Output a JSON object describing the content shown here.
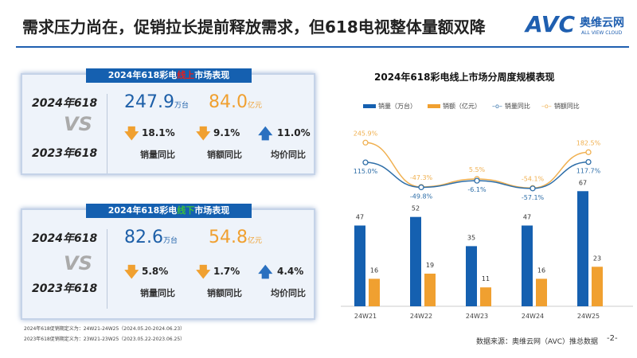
{
  "title": "需求压力尚在，促销拉长提前释放需求，但618电视整体量额双降",
  "logo": {
    "mark": "AVC",
    "cn": "奥维云网",
    "en": "ALL VIEW CLOUD"
  },
  "panels": [
    {
      "title_pre": "2024年618彩电",
      "title_hl": "线上",
      "title_post": "市场表现",
      "hl_color": "#e02020",
      "year_a": "2024年618",
      "vs": "VS",
      "year_b": "2023年618",
      "volume": "247.9",
      "volume_unit": "万台",
      "sales": "84.0",
      "sales_unit": "亿元",
      "vol_yoy": "18.1%",
      "sales_yoy": "9.1%",
      "price_yoy": "11.0%",
      "vol_dir": "down",
      "sales_dir": "down",
      "price_dir": "up",
      "vol_label": "销量同比",
      "sales_label": "销额同比",
      "price_label": "均价同比"
    },
    {
      "title_pre": "2024年618彩电",
      "title_hl": "线下",
      "title_post": "市场表现",
      "hl_color": "#3bbf3b",
      "year_a": "2024年618",
      "vs": "VS",
      "year_b": "2023年618",
      "volume": "82.6",
      "volume_unit": "万台",
      "sales": "54.8",
      "sales_unit": "亿元",
      "vol_yoy": "5.8%",
      "sales_yoy": "1.7%",
      "price_yoy": "4.4%",
      "vol_dir": "down",
      "sales_dir": "down",
      "price_dir": "up",
      "vol_label": "销量同比",
      "sales_label": "销额同比",
      "price_label": "均价同比"
    }
  ],
  "notes": [
    "2024年618促销期定义为：24W21-24W25（2024.05.20-2024.06.23）",
    "2023年618促销期定义为：23W21-23W25（2023.05.22-2023.06.25）"
  ],
  "source": "数据来源：奥维云网（AVC）推总数据",
  "page": "-2-",
  "chart_data": {
    "type": "bar+line",
    "title": "2024年618彩电线上市场分周度规模表现",
    "categories": [
      "24W21",
      "24W22",
      "24W23",
      "24W24",
      "24W25"
    ],
    "series": [
      {
        "name": "销量（万台）",
        "kind": "bar",
        "color": "#1560b0",
        "values": [
          47,
          52,
          35,
          47,
          67
        ]
      },
      {
        "name": "销额（亿元）",
        "kind": "bar",
        "color": "#f0a030",
        "values": [
          16,
          19,
          11,
          16,
          23
        ]
      },
      {
        "name": "销量同比",
        "kind": "line",
        "color": "#2e6ea8",
        "values": [
          115.0,
          -49.8,
          -6.1,
          -57.1,
          117.7
        ],
        "labels": [
          "115.0%",
          "-49.8%",
          "-6.1%",
          "-57.1%",
          "117.7%"
        ]
      },
      {
        "name": "销额同比",
        "kind": "line",
        "color": "#f0b050",
        "values": [
          245.9,
          -47.3,
          5.5,
          -54.1,
          182.5
        ],
        "labels": [
          "245.9%",
          "-47.3%",
          "5.5%",
          "-54.1%",
          "182.5%"
        ]
      }
    ],
    "legend": "top",
    "grid": false
  }
}
